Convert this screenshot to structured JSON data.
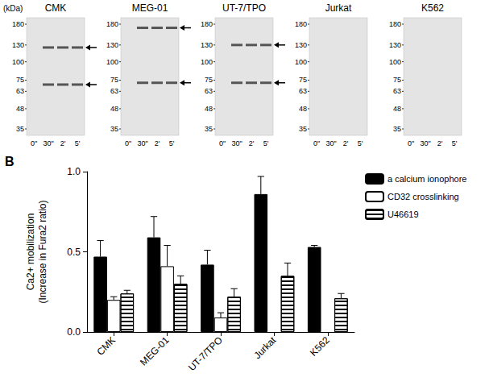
{
  "blots": {
    "kDa_label": "(kDa)",
    "lanes": [
      "0\"",
      "30\"",
      "2'",
      "5'"
    ],
    "panels": [
      {
        "title": "CMK",
        "markers": [
          180,
          130,
          100,
          75,
          63,
          48,
          35
        ],
        "arrows_kDa": [
          125,
          70
        ]
      },
      {
        "title": "MEG-01",
        "markers": [
          180,
          130,
          100,
          75,
          63,
          48,
          35
        ],
        "arrows_kDa": [
          170,
          72
        ]
      },
      {
        "title": "UT-7/TPO",
        "markers": [
          180,
          130,
          100,
          75,
          63,
          48,
          35
        ],
        "arrows_kDa": [
          130,
          72
        ]
      },
      {
        "title": "Jurkat",
        "markers": [
          180,
          130,
          100,
          75,
          63,
          48,
          35
        ],
        "arrows_kDa": []
      },
      {
        "title": "K562",
        "markers": [
          180,
          130,
          100,
          75,
          63,
          48,
          35
        ],
        "arrows_kDa": []
      }
    ]
  },
  "panel_label": "B",
  "chart_data": {
    "type": "bar",
    "categories": [
      "CMK",
      "MEG-01",
      "UT-7/TPO",
      "Jurkat",
      "K562"
    ],
    "ylabel": [
      "Ca2+ mobilization",
      "(Increase in Fura2 ratio)"
    ],
    "ylim": [
      0,
      1
    ],
    "yticks": [
      {
        "value": 0,
        "label": "0.0"
      },
      {
        "value": 0.5,
        "label": "0.5"
      },
      {
        "value": 1,
        "label": "1.0"
      }
    ],
    "grid": false,
    "legend": "upper right",
    "series": [
      {
        "name": "a calcium ionophore",
        "color": "#000000",
        "marker": "solid",
        "values": [
          0.47,
          0.59,
          0.42,
          0.86,
          0.53
        ],
        "errors": [
          0.1,
          0.13,
          0.09,
          0.11,
          0.01
        ]
      },
      {
        "name": "CD32 crosslinking",
        "color": "#ffffff",
        "marker": "solid",
        "values": [
          0.2,
          0.41,
          0.09,
          null,
          null
        ],
        "errors": [
          0.02,
          0.13,
          0.03,
          null,
          null
        ]
      },
      {
        "name": "U46619",
        "color": "#ffffff",
        "marker": "hatch",
        "values": [
          0.24,
          0.3,
          0.22,
          0.35,
          0.21
        ],
        "errors": [
          0.02,
          0.05,
          0.05,
          0.08,
          0.03
        ]
      }
    ]
  }
}
